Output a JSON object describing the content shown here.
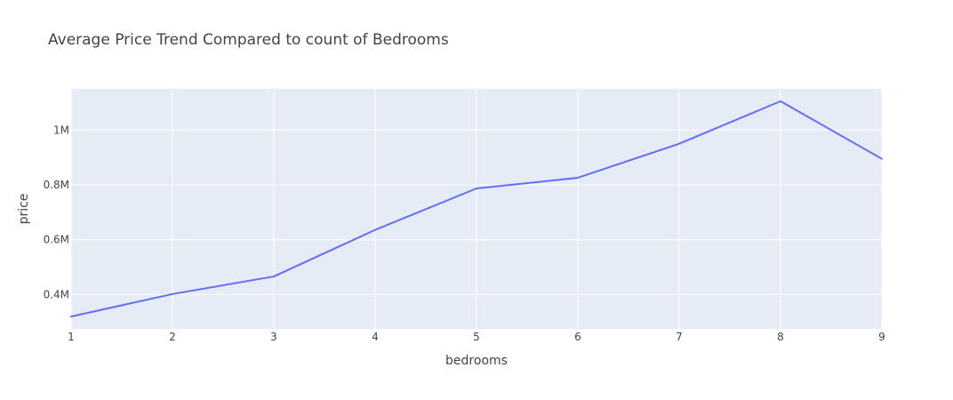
{
  "chart_data": {
    "type": "line",
    "title": "Average Price Trend Compared to count of Bedrooms",
    "xlabel": "bedrooms",
    "ylabel": "price",
    "x": [
      1,
      2,
      3,
      4,
      5,
      6,
      7,
      8,
      9
    ],
    "series": [
      {
        "values": [
          320000,
          402000,
          466000,
          636000,
          787000,
          826000,
          950000,
          1105000,
          895000
        ]
      }
    ],
    "xlim": [
      1,
      9
    ],
    "ylim": [
      275000,
      1150000
    ],
    "x_ticks": [
      1,
      2,
      3,
      4,
      5,
      6,
      7,
      8,
      9
    ],
    "x_tick_labels": [
      "1",
      "2",
      "3",
      "4",
      "5",
      "6",
      "7",
      "8",
      "9"
    ],
    "y_ticks": [
      400000,
      600000,
      800000,
      1000000
    ],
    "y_tick_labels": [
      "0.4M",
      "0.6M",
      "0.8M",
      "1M"
    ],
    "grid": true,
    "legend": "none",
    "colors": {
      "line": "#636efa",
      "plot_background": "#e5ecf6",
      "grid": "#ffffff",
      "text": "#444444"
    }
  }
}
